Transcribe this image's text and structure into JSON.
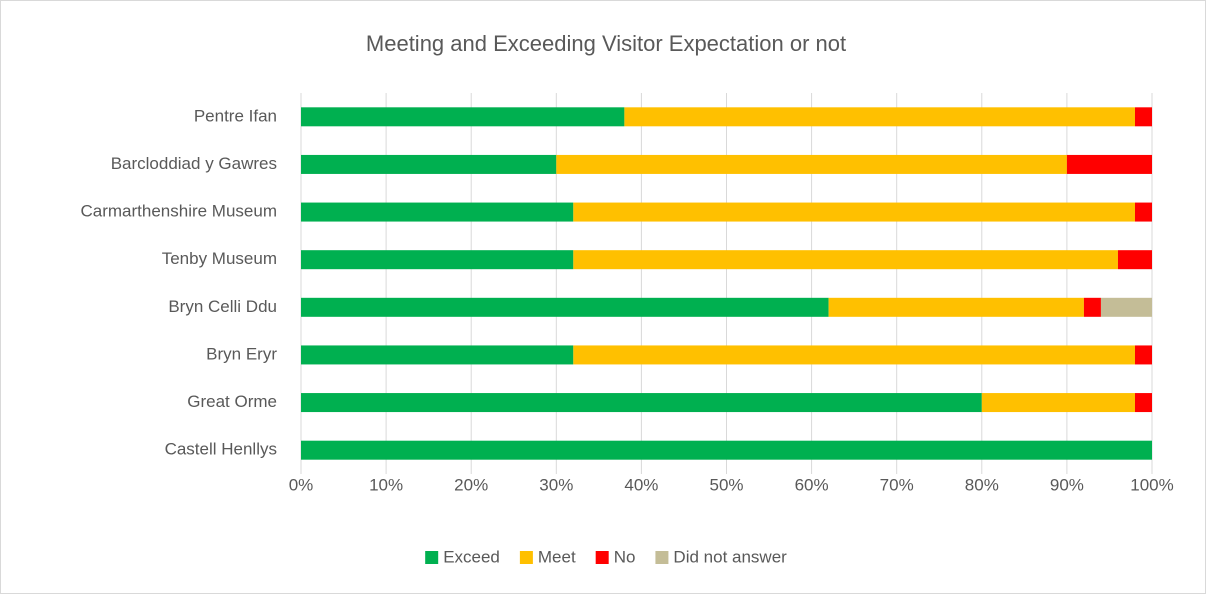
{
  "chart_data": {
    "type": "stacked-barh",
    "title": "Meeting and Exceeding Visitor Expectation or not",
    "categories": [
      "Pentre Ifan",
      "Barcloddiad y Gawres",
      "Carmarthenshire Museum",
      "Tenby Museum",
      "Bryn Celli Ddu",
      "Bryn Eryr",
      "Great Orme",
      "Castell Henllys"
    ],
    "series": [
      {
        "name": "Exceed",
        "color": "#00b050",
        "values": [
          38,
          30,
          32,
          32,
          62,
          32,
          80,
          100
        ]
      },
      {
        "name": "Meet",
        "color": "#ffc000",
        "values": [
          60,
          60,
          66,
          64,
          30,
          66,
          18,
          0
        ]
      },
      {
        "name": "No",
        "color": "#ff0000",
        "values": [
          2,
          10,
          2,
          4,
          2,
          2,
          2,
          0
        ]
      },
      {
        "name": "Did not answer",
        "color": "#c4bd97",
        "values": [
          0,
          0,
          0,
          0,
          6,
          0,
          0,
          0
        ]
      }
    ],
    "xlim": [
      0,
      100
    ],
    "xticks": [
      {
        "value": 0,
        "label": "0%"
      },
      {
        "value": 10,
        "label": "10%"
      },
      {
        "value": 20,
        "label": "20%"
      },
      {
        "value": 30,
        "label": "30%"
      },
      {
        "value": 40,
        "label": "40%"
      },
      {
        "value": 50,
        "label": "50%"
      },
      {
        "value": 60,
        "label": "60%"
      },
      {
        "value": 70,
        "label": "70%"
      },
      {
        "value": 80,
        "label": "80%"
      },
      {
        "value": 90,
        "label": "90%"
      },
      {
        "value": 100,
        "label": "100%"
      }
    ],
    "grid": true,
    "legend": "bottom"
  }
}
